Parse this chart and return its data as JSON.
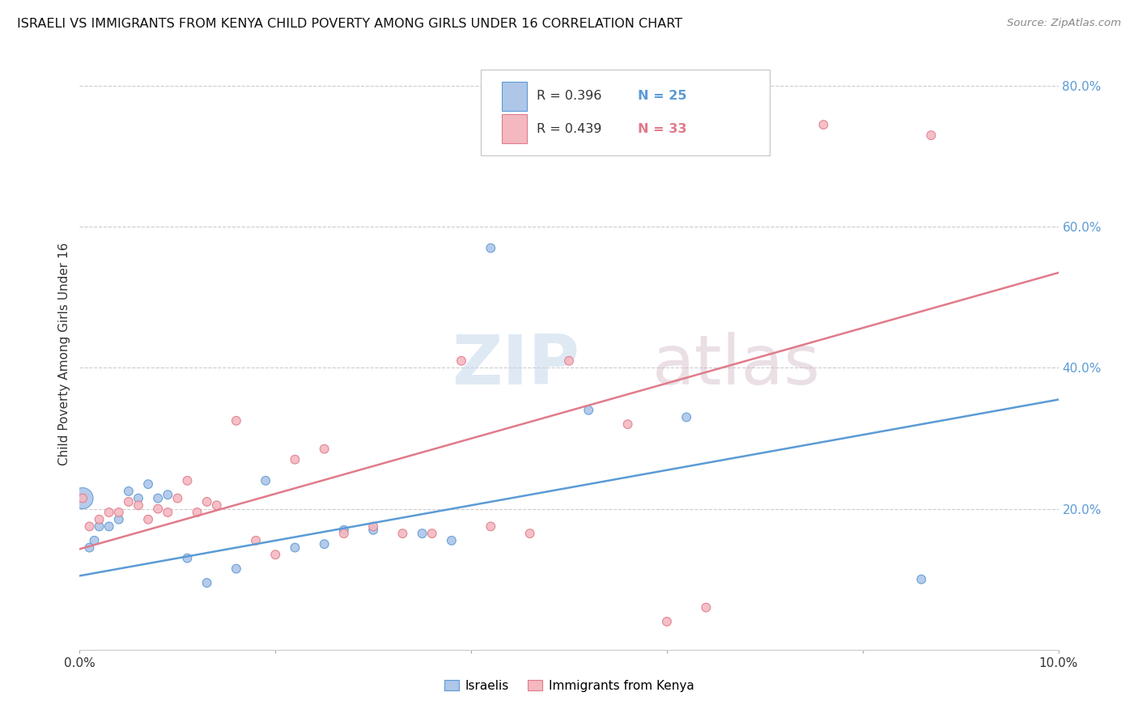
{
  "title": "ISRAELI VS IMMIGRANTS FROM KENYA CHILD POVERTY AMONG GIRLS UNDER 16 CORRELATION CHART",
  "source": "Source: ZipAtlas.com",
  "ylabel": "Child Poverty Among Girls Under 16",
  "xmin": 0.0,
  "xmax": 0.1,
  "ymin": 0.0,
  "ymax": 0.84,
  "xticks": [
    0.0,
    0.02,
    0.04,
    0.06,
    0.08,
    0.1
  ],
  "xticklabels": [
    "0.0%",
    "",
    "",
    "",
    "",
    "10.0%"
  ],
  "yticks_right": [
    0.2,
    0.4,
    0.6,
    0.8
  ],
  "ytick_labels_right": [
    "20.0%",
    "40.0%",
    "60.0%",
    "80.0%"
  ],
  "israeli_color": "#aec6e8",
  "kenya_color": "#f4b8c1",
  "israeli_line_color": "#5b9bd5",
  "kenya_line_color": "#e07b8a",
  "watermark_zip": "ZIP",
  "watermark_atlas": "atlas",
  "israeli_x": [
    0.0003,
    0.001,
    0.0015,
    0.002,
    0.003,
    0.004,
    0.005,
    0.006,
    0.007,
    0.008,
    0.009,
    0.011,
    0.013,
    0.016,
    0.019,
    0.022,
    0.025,
    0.027,
    0.03,
    0.035,
    0.038,
    0.042,
    0.052,
    0.062,
    0.086
  ],
  "israeli_y": [
    0.215,
    0.145,
    0.155,
    0.175,
    0.175,
    0.185,
    0.225,
    0.215,
    0.235,
    0.215,
    0.22,
    0.13,
    0.095,
    0.115,
    0.24,
    0.145,
    0.15,
    0.17,
    0.17,
    0.165,
    0.155,
    0.57,
    0.34,
    0.33,
    0.1
  ],
  "israeli_sizes": [
    350,
    60,
    60,
    60,
    60,
    60,
    60,
    60,
    60,
    60,
    60,
    60,
    60,
    60,
    60,
    60,
    60,
    60,
    60,
    60,
    60,
    60,
    60,
    60,
    60
  ],
  "kenya_x": [
    0.0003,
    0.001,
    0.002,
    0.003,
    0.004,
    0.005,
    0.006,
    0.007,
    0.008,
    0.009,
    0.01,
    0.011,
    0.012,
    0.013,
    0.014,
    0.016,
    0.018,
    0.02,
    0.022,
    0.025,
    0.027,
    0.03,
    0.033,
    0.036,
    0.039,
    0.042,
    0.046,
    0.05,
    0.056,
    0.06,
    0.064,
    0.076,
    0.087
  ],
  "kenya_y": [
    0.215,
    0.175,
    0.185,
    0.195,
    0.195,
    0.21,
    0.205,
    0.185,
    0.2,
    0.195,
    0.215,
    0.24,
    0.195,
    0.21,
    0.205,
    0.325,
    0.155,
    0.135,
    0.27,
    0.285,
    0.165,
    0.175,
    0.165,
    0.165,
    0.41,
    0.175,
    0.165,
    0.41,
    0.32,
    0.04,
    0.06,
    0.745,
    0.73
  ],
  "kenya_sizes": [
    60,
    60,
    60,
    60,
    60,
    60,
    60,
    60,
    60,
    60,
    60,
    60,
    60,
    60,
    60,
    60,
    60,
    60,
    60,
    60,
    60,
    60,
    60,
    60,
    60,
    60,
    60,
    60,
    60,
    60,
    60,
    60,
    60
  ],
  "israeli_line_y0": 0.105,
  "israeli_line_y1": 0.355,
  "kenya_line_y0": 0.143,
  "kenya_line_y1": 0.535,
  "background_color": "#ffffff",
  "grid_color": "#cccccc",
  "legend_r1": "R = 0.396",
  "legend_n1": "N = 25",
  "legend_r2": "R = 0.439",
  "legend_n2": "N = 33",
  "legend_bottom1": "Israelis",
  "legend_bottom2": "Immigrants from Kenya"
}
